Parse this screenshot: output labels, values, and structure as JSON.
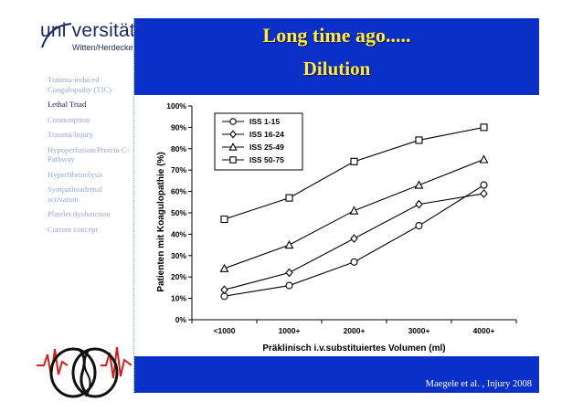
{
  "logo": {
    "word": "uni versität",
    "subtitle": "Witten/Herdecke"
  },
  "sidebar": {
    "items": [
      {
        "label": "Trauma-induced Coagulopathy (TIC)",
        "active": false
      },
      {
        "label": "Lethal Triad",
        "active": true
      },
      {
        "label": "Consumption",
        "active": false
      },
      {
        "label": "Trauma/Injury",
        "active": false
      },
      {
        "label": "Hypoperfusion/Protein C-Pathway",
        "active": false
      },
      {
        "label": "Hyperfibrinolysis",
        "active": false
      },
      {
        "label": "Sympathoadrenal activation",
        "active": false
      },
      {
        "label": "Platelet dysfunction",
        "active": false
      },
      {
        "label": "Current concept",
        "active": false
      }
    ]
  },
  "header": {
    "title": "Long time ago.....",
    "subtitle": "Dilution"
  },
  "footer": {
    "citation": "Maegele et al. , Injury  2008"
  },
  "colors": {
    "bar_blue": "#0a30c8",
    "title_yellow": "#ffe84a",
    "sidebar_text": "#9aa6d4",
    "sidebar_active": "#1a2260"
  },
  "chart_data": {
    "type": "line",
    "categories": [
      "<1000",
      "1000+",
      "2000+",
      "3000+",
      "4000+"
    ],
    "xlabel": "Präklinisch i.v.substituiertes Volumen (ml)",
    "ylabel": "Patienten mit Koagulopathie (%)",
    "ylim": [
      0,
      100
    ],
    "yticks": [
      "0%",
      "10%",
      "20%",
      "30%",
      "40%",
      "50%",
      "60%",
      "70%",
      "80%",
      "90%",
      "100%"
    ],
    "grid": false,
    "legend_position": "top-left",
    "series": [
      {
        "name": "ISS 1-15",
        "marker": "circle",
        "values": [
          11,
          16,
          27,
          44,
          63
        ]
      },
      {
        "name": "ISS 16-24",
        "marker": "diamond",
        "values": [
          14,
          22,
          38,
          54,
          59
        ]
      },
      {
        "name": "ISS 25-49",
        "marker": "triangle",
        "values": [
          24,
          35,
          51,
          63,
          75
        ]
      },
      {
        "name": "ISS 50-75",
        "marker": "square",
        "values": [
          47,
          57,
          74,
          84,
          90
        ]
      }
    ]
  }
}
